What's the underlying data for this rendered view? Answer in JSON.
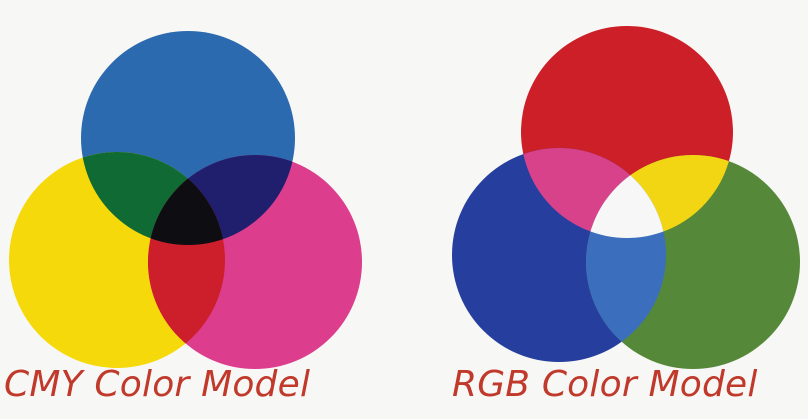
{
  "background": "#f7f7f5",
  "caption_color": "#c0392b",
  "cmy_model": {
    "caption": "CMY Color Model",
    "circles": [
      {
        "name": "blue-circle",
        "color": "#2c6ab0"
      },
      {
        "name": "yellow-circle",
        "color": "#f5d90a"
      },
      {
        "name": "magenta-circle",
        "color": "#dc3d8d"
      }
    ],
    "overlaps": {
      "top-left": "#0f6b33",
      "top-right": "#201f6e",
      "bottom": "#cc1f2b",
      "center": "#0d0d12"
    }
  },
  "rgb_model": {
    "caption": "RGB Color Model",
    "circles": [
      {
        "name": "red-circle",
        "color": "#cc1f28"
      },
      {
        "name": "blue-circle",
        "color": "#263e9e"
      },
      {
        "name": "green-circle",
        "color": "#56883a"
      }
    ],
    "overlaps": {
      "top-left": "#d8428a",
      "top-right": "#f3d613",
      "bottom": "#3b6fbd",
      "center": "#f7f7f7"
    }
  }
}
